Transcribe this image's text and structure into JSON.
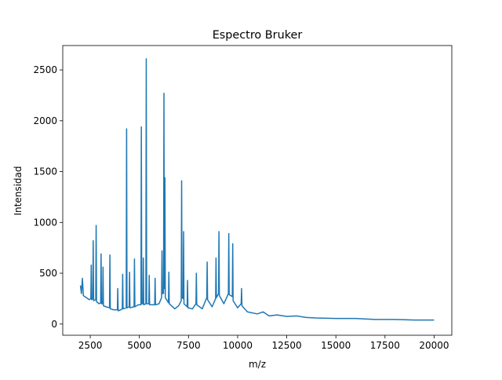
{
  "chart_data": {
    "type": "line",
    "title": "Espectro Bruker",
    "x_label": "m/z",
    "y_label": "Intensidad",
    "xlim": [
      1100,
      20900
    ],
    "ylim": [
      -110,
      2740
    ],
    "xticks": [
      2500,
      5000,
      7500,
      10000,
      12500,
      15000,
      17500,
      20000
    ],
    "yticks": [
      0,
      500,
      1000,
      1500,
      2000,
      2500
    ],
    "grid": false,
    "series": [
      {
        "color": "#1f77b4",
        "x": [
          2000,
          2050,
          2100,
          2150,
          2300,
          2450,
          2530,
          2550,
          2570,
          2630,
          2650,
          2670,
          2780,
          2800,
          2820,
          2950,
          3030,
          3050,
          3070,
          3130,
          3150,
          3170,
          3300,
          3480,
          3500,
          3520,
          3700,
          3880,
          3900,
          3920,
          4050,
          4130,
          4150,
          4170,
          4330,
          4350,
          4370,
          4480,
          4500,
          4520,
          4730,
          4750,
          4770,
          4950,
          5080,
          5100,
          5120,
          5180,
          5200,
          5220,
          5330,
          5350,
          5370,
          5480,
          5500,
          5520,
          5780,
          5800,
          5820,
          6000,
          6130,
          6150,
          6170,
          6230,
          6250,
          6270,
          6290,
          6300,
          6320,
          6480,
          6500,
          6520,
          6800,
          7000,
          7130,
          7150,
          7170,
          7230,
          7250,
          7270,
          7430,
          7450,
          7470,
          7700,
          7880,
          7900,
          7920,
          8200,
          8430,
          8450,
          8470,
          8700,
          8880,
          8900,
          8920,
          9030,
          9050,
          9070,
          9300,
          9530,
          9550,
          9570,
          9730,
          9750,
          9770,
          10000,
          10180,
          10200,
          10220,
          10500,
          11000,
          11300,
          11600,
          12000,
          12500,
          13000,
          13500,
          14000,
          15000,
          16000,
          17000,
          18000,
          19000,
          20000
        ],
        "values": [
          380,
          300,
          450,
          280,
          260,
          240,
          250,
          580,
          240,
          250,
          820,
          230,
          240,
          970,
          220,
          200,
          210,
          690,
          200,
          200,
          560,
          180,
          170,
          160,
          680,
          150,
          140,
          140,
          350,
          130,
          140,
          150,
          490,
          150,
          160,
          1920,
          160,
          170,
          510,
          160,
          170,
          640,
          170,
          190,
          190,
          1940,
          200,
          200,
          650,
          190,
          200,
          2610,
          200,
          200,
          480,
          190,
          190,
          450,
          190,
          200,
          260,
          720,
          300,
          300,
          2270,
          350,
          350,
          1440,
          260,
          210,
          510,
          200,
          150,
          180,
          230,
          1410,
          260,
          250,
          910,
          200,
          170,
          430,
          160,
          150,
          200,
          500,
          190,
          150,
          260,
          610,
          240,
          170,
          250,
          650,
          260,
          300,
          910,
          280,
          200,
          300,
          890,
          290,
          270,
          790,
          230,
          160,
          200,
          350,
          180,
          120,
          100,
          120,
          80,
          90,
          75,
          80,
          65,
          60,
          55,
          55,
          45,
          45,
          40,
          40
        ]
      }
    ]
  }
}
